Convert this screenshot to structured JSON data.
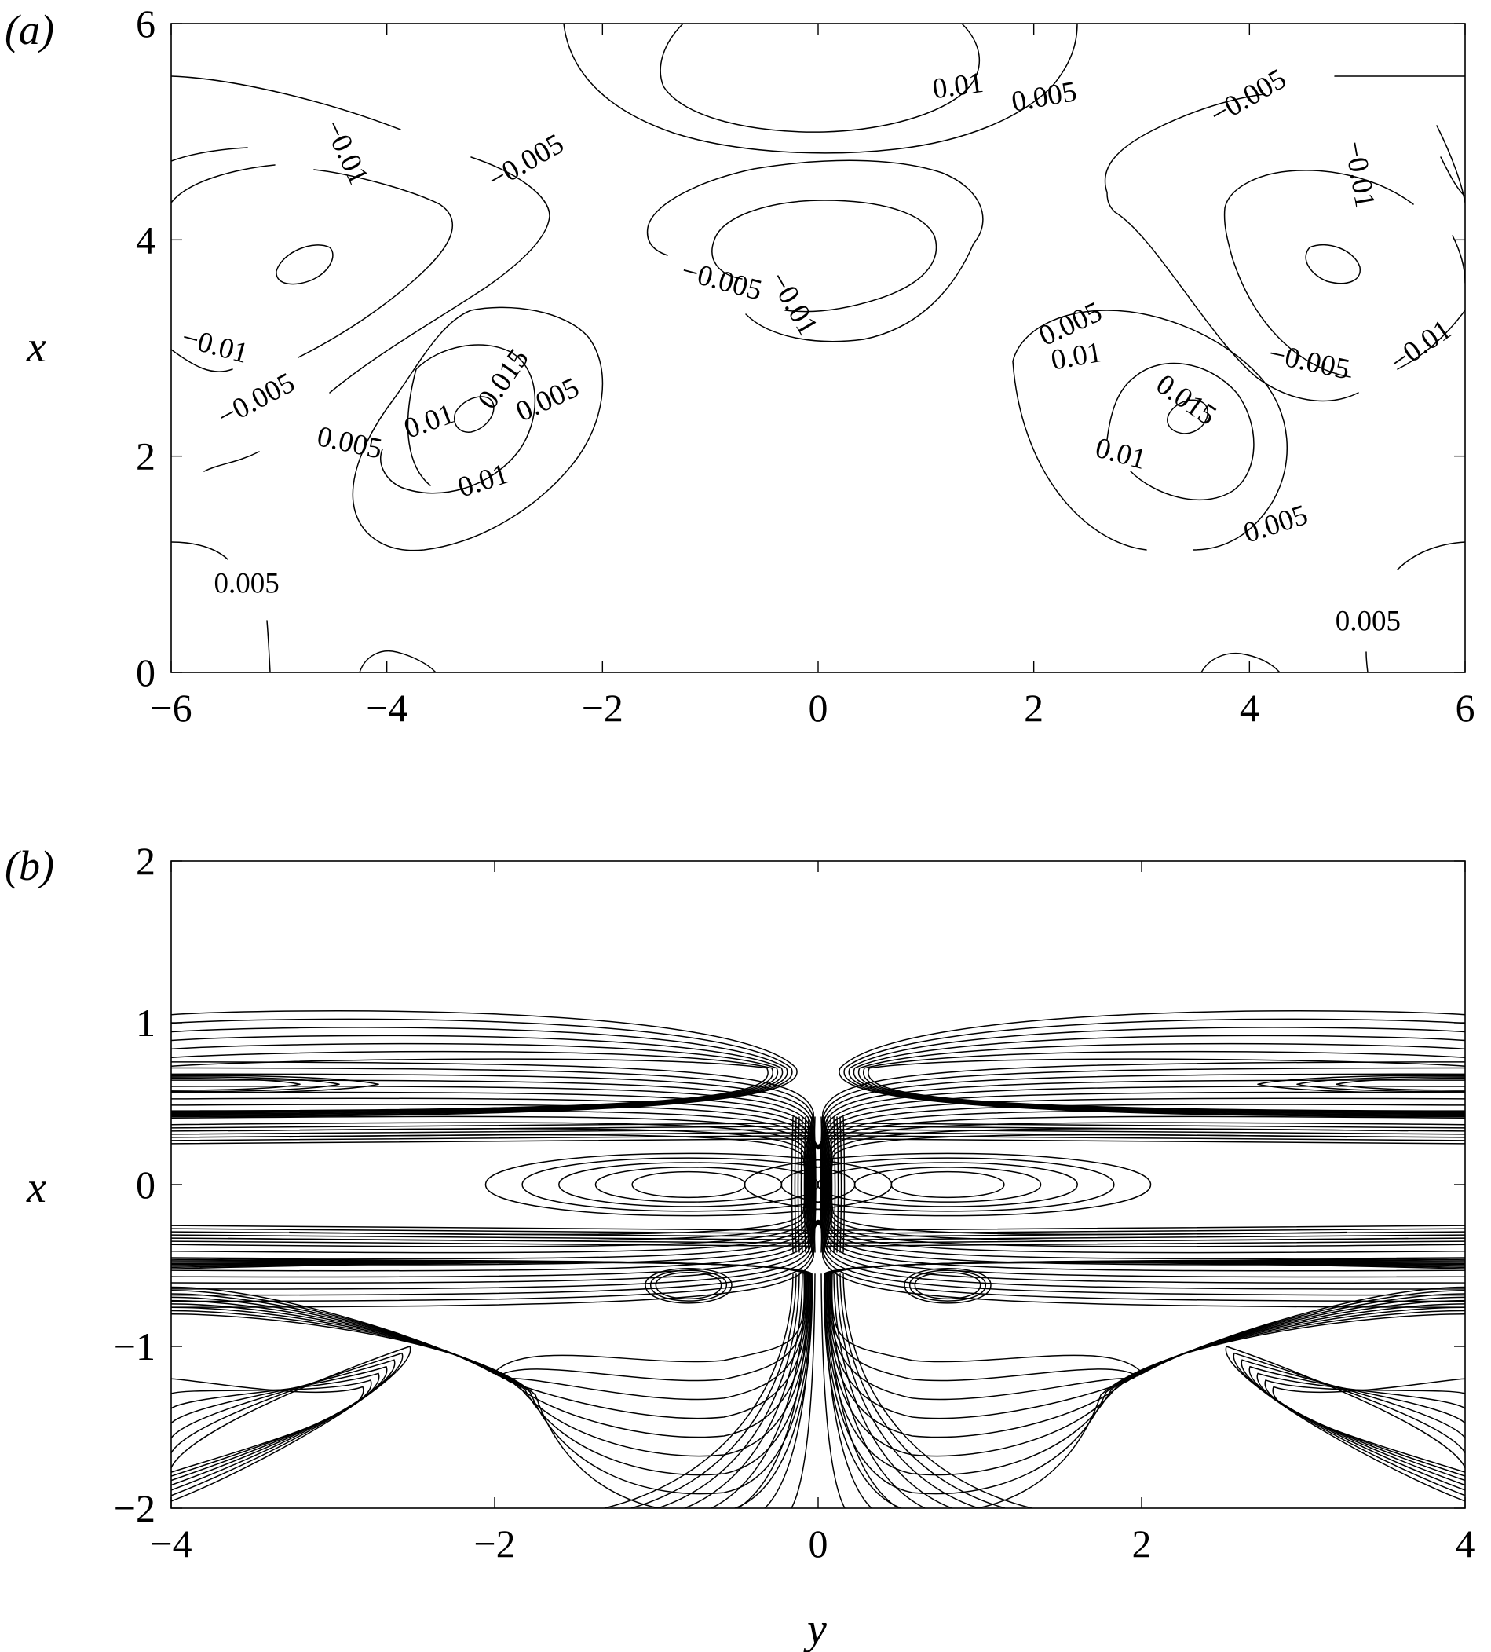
{
  "chart_data": [
    {
      "panel": "(a)",
      "type": "contour",
      "ylabel": "x",
      "xlim": [
        -6,
        6
      ],
      "ylim": [
        0,
        6
      ],
      "xticks": [
        "−6",
        "−4",
        "−2",
        "0",
        "2",
        "4",
        "6"
      ],
      "yticks": [
        "0",
        "2",
        "4",
        "6"
      ],
      "contour_levels": [
        -0.01,
        -0.005,
        0.005,
        0.01,
        0.015
      ],
      "contour_labels": [
        {
          "text": "0.01",
          "y": 1.3,
          "x": 5.4
        },
        {
          "text": "0.005",
          "y": 2.1,
          "x": 5.3
        },
        {
          "text": "−0.005",
          "y": -2.7,
          "x": 4.7
        },
        {
          "text": "−0.01",
          "y": -4.4,
          "x": 4.8
        },
        {
          "text": "−0.005",
          "y": -0.9,
          "x": 3.6
        },
        {
          "text": "−0.01",
          "y": -0.25,
          "x": 3.4
        },
        {
          "text": "−0.01",
          "y": -5.6,
          "x": 3.0
        },
        {
          "text": "−0.005",
          "y": -5.2,
          "x": 2.5
        },
        {
          "text": "0.015",
          "y": -2.9,
          "x": 2.7
        },
        {
          "text": "0.01",
          "y": -3.6,
          "x": 2.3
        },
        {
          "text": "0.005",
          "y": -2.5,
          "x": 2.5
        },
        {
          "text": "0.005",
          "y": -4.35,
          "x": 2.1
        },
        {
          "text": "0.01",
          "y": -3.1,
          "x": 1.75
        },
        {
          "text": "0.005",
          "y": -5.3,
          "x": 0.8
        },
        {
          "text": "−0.005",
          "y": 4.0,
          "x": 5.3
        },
        {
          "text": "−0.01",
          "y": 5.0,
          "x": 4.6
        },
        {
          "text": "0.005",
          "y": 2.35,
          "x": 3.2
        },
        {
          "text": "0.01",
          "y": 2.4,
          "x": 2.9
        },
        {
          "text": "−0.005",
          "y": 4.55,
          "x": 2.85
        },
        {
          "text": "−0.01",
          "y": 5.6,
          "x": 3.0
        },
        {
          "text": "0.015",
          "y": 3.4,
          "x": 2.5
        },
        {
          "text": "0.01",
          "y": 2.8,
          "x": 2.0
        },
        {
          "text": "0.005",
          "y": 4.25,
          "x": 1.35
        },
        {
          "text": "0.005",
          "y": 5.1,
          "x": 0.45
        }
      ]
    },
    {
      "panel": "(b)",
      "type": "contour",
      "xlabel": "y",
      "ylabel": "x",
      "xlim": [
        -4,
        4
      ],
      "ylim": [
        -2,
        2
      ],
      "xticks": [
        "−4",
        "−2",
        "0",
        "2",
        "4"
      ],
      "yticks": [
        "−2",
        "−1",
        "0",
        "1",
        "2"
      ],
      "contour_labels": []
    }
  ]
}
